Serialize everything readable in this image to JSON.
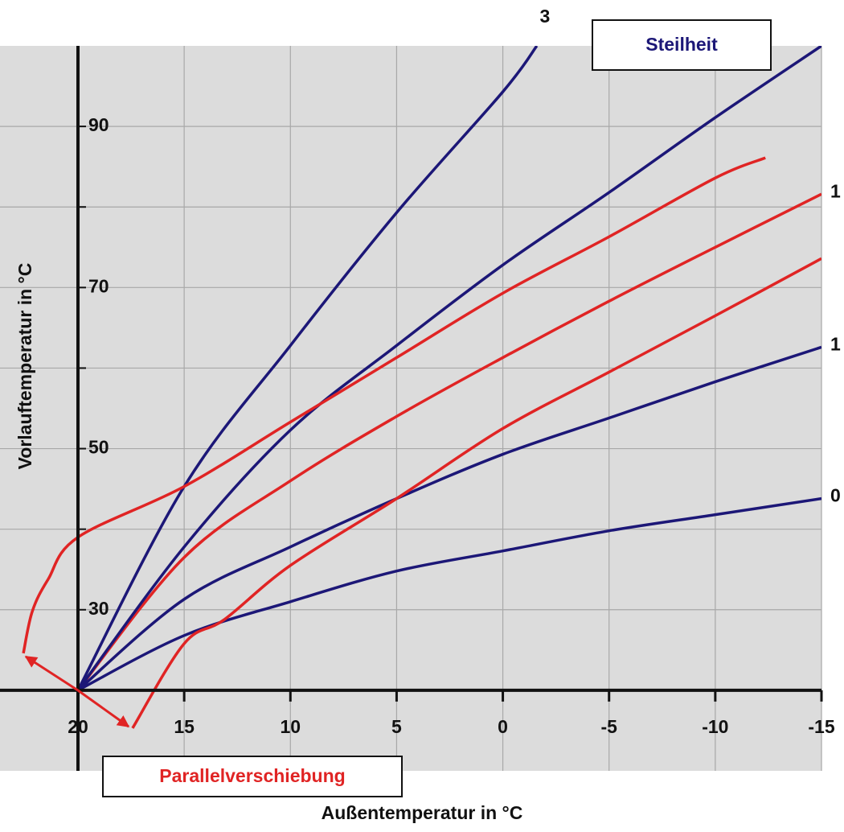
{
  "chart_data": {
    "type": "line",
    "xlabel": "Außentemperatur in °C",
    "ylabel": "Vorlauftemperatur in °C",
    "xlim": [
      23.67,
      -15
    ],
    "ylim": [
      10,
      100
    ],
    "xticks": [
      20,
      15,
      10,
      5,
      0,
      -5,
      -10,
      -15
    ],
    "yticks": [
      30,
      50,
      70,
      90
    ],
    "yticks_minor": [
      40,
      60,
      80
    ],
    "axes_cross": {
      "x": 20,
      "y": 20
    },
    "grid": true,
    "series": [
      {
        "name": "3",
        "color": "#1c1777",
        "x": [
          20,
          15,
          10,
          5,
          0,
          -1.6
        ],
        "values": [
          20,
          45.3,
          62.8,
          79.3,
          94.3,
          100
        ]
      },
      {
        "name": "1",
        "color": "#e02424",
        "x": [
          20,
          15,
          10,
          5,
          0,
          -5,
          -10,
          -15
        ],
        "values": [
          20,
          36.5,
          46,
          54,
          61.3,
          68.3,
          75,
          81.6
        ]
      },
      {
        "color": "#1c1777",
        "x": [
          20,
          15,
          10,
          5,
          0,
          -5,
          -10,
          -15
        ],
        "values": [
          20,
          37.8,
          52.3,
          62.8,
          72.8,
          81.8,
          91.1,
          100
        ]
      },
      {
        "name": "1",
        "color": "#1c1777",
        "x": [
          20,
          15,
          10,
          5,
          0,
          -5,
          -10,
          -15
        ],
        "values": [
          20,
          31.3,
          37.8,
          43.8,
          49.3,
          53.8,
          58.3,
          62.6
        ]
      },
      {
        "name": "0",
        "color": "#1c1777",
        "x": [
          20,
          15,
          10,
          5,
          0,
          -5,
          -10,
          -15
        ],
        "values": [
          20,
          26.8,
          31,
          34.8,
          37.3,
          39.8,
          41.8,
          43.8
        ]
      },
      {
        "color": "#e02424",
        "x": [
          22.57,
          22.15,
          21.4,
          20,
          15,
          10,
          5,
          0,
          -5,
          -10,
          -12.36
        ],
        "values": [
          24.6,
          29.8,
          33.8,
          39,
          45.3,
          53.3,
          61.3,
          69.3,
          76.3,
          83.6,
          86.1
        ]
      },
      {
        "color": "#e02424",
        "x": [
          17.43,
          15,
          13.1,
          10,
          5,
          0,
          -5,
          -10,
          -15
        ],
        "values": [
          15.3,
          25.8,
          28.8,
          35.5,
          43.8,
          52.5,
          59.5,
          66.5,
          73.6
        ]
      }
    ],
    "annotations": {
      "slope": "Steilheit",
      "shift": "Parallelverschiebung"
    }
  }
}
